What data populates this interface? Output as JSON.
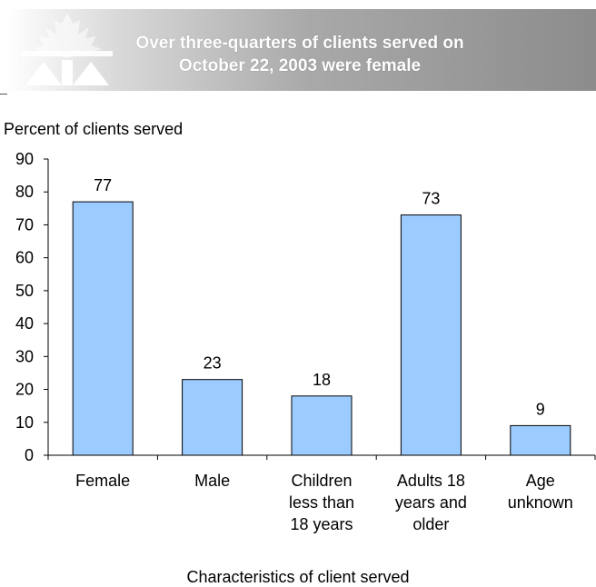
{
  "banner": {
    "title_line1": "Over three-quarters of clients served on",
    "title_line2": "October 22, 2003 were female"
  },
  "colors": {
    "bar_fill": "#9cccff",
    "bar_stroke": "#000000",
    "banner_logo": "#ffffff"
  },
  "chart_data": {
    "type": "bar",
    "ylabel": "Percent of clients served",
    "xlabel": "Characteristics of client served",
    "categories": [
      [
        "Female"
      ],
      [
        "Male"
      ],
      [
        "Children",
        "less than",
        "18 years"
      ],
      [
        "Adults 18",
        "years and",
        "older"
      ],
      [
        "Age",
        "unknown"
      ]
    ],
    "values": [
      77,
      23,
      18,
      73,
      9
    ],
    "ylim": [
      0,
      90
    ],
    "yticks": [
      0,
      10,
      20,
      30,
      40,
      50,
      60,
      70,
      80,
      90
    ],
    "grid": false,
    "legend": false
  }
}
